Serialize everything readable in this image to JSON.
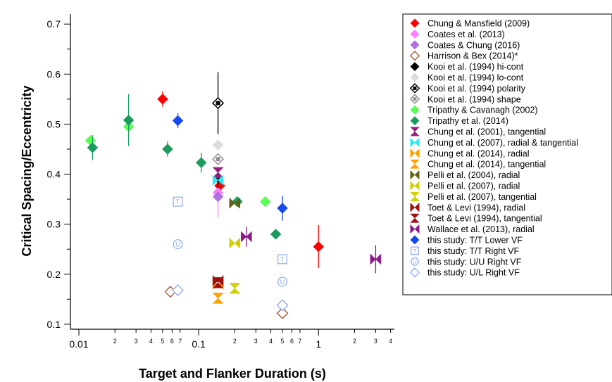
{
  "chart_data": {
    "type": "scatter",
    "xlabel": "Target and Flanker Duration (s)",
    "ylabel": "Critical Spacing/Eccentricity",
    "xscale": "log",
    "xlim": [
      0.0085,
      4.3
    ],
    "ylim": [
      0.09,
      0.72
    ],
    "grid": false,
    "legend_position": "right",
    "x_ticks": [
      {
        "value": 0.01,
        "label": "0.01",
        "major": true
      },
      {
        "value": 0.02,
        "label": "2",
        "major": false
      },
      {
        "value": 0.03,
        "label": "3",
        "major": false
      },
      {
        "value": 0.04,
        "label": "4",
        "major": false
      },
      {
        "value": 0.05,
        "label": "5",
        "major": false
      },
      {
        "value": 0.06,
        "label": "6",
        "major": false
      },
      {
        "value": 0.07,
        "label": "7",
        "major": false
      },
      {
        "value": 0.1,
        "label": "0.1",
        "major": true
      },
      {
        "value": 0.2,
        "label": "2",
        "major": false
      },
      {
        "value": 0.3,
        "label": "3",
        "major": false
      },
      {
        "value": 0.4,
        "label": "4",
        "major": false
      },
      {
        "value": 0.5,
        "label": "5",
        "major": false
      },
      {
        "value": 0.6,
        "label": "6",
        "major": false
      },
      {
        "value": 0.7,
        "label": "7",
        "major": false
      },
      {
        "value": 1,
        "label": "1",
        "major": true
      },
      {
        "value": 2,
        "label": "2",
        "major": false
      },
      {
        "value": 3,
        "label": "3",
        "major": false
      },
      {
        "value": 4,
        "label": "4",
        "major": false
      }
    ],
    "y_ticks": [
      {
        "value": 0.1,
        "label": "0.1"
      },
      {
        "value": 0.2,
        "label": "0.2"
      },
      {
        "value": 0.3,
        "label": "0.3"
      },
      {
        "value": 0.4,
        "label": "0.4"
      },
      {
        "value": 0.5,
        "label": "0.5"
      },
      {
        "value": 0.6,
        "label": "0.6"
      },
      {
        "value": 0.7,
        "label": "0.7"
      }
    ],
    "series": [
      {
        "name": "Chung & Mansfield (2009)",
        "marker": "diamond-filled",
        "color": "#ff0000",
        "points": [
          {
            "x": 0.05,
            "y": 0.55,
            "yerr": 0.015
          },
          {
            "x": 0.15,
            "y": 0.377,
            "yerr": 0.02
          },
          {
            "x": 1.0,
            "y": 0.255,
            "yerr": 0.043
          }
        ]
      },
      {
        "name": "Coates et al. (2013)",
        "marker": "diamond-filled",
        "color": "#ff80ff",
        "points": [
          {
            "x": 0.145,
            "y": 0.363,
            "yerr": 0.05
          }
        ]
      },
      {
        "name": "Coates & Chung (2016)",
        "marker": "diamond-filled",
        "color": "#b070e0",
        "points": [
          {
            "x": 0.145,
            "y": 0.355,
            "yerr": 0.01
          }
        ]
      },
      {
        "name": "Harrison & Bex (2014)*",
        "marker": "diamond-open",
        "color": "#a0522d",
        "points": [
          {
            "x": 0.058,
            "y": 0.165
          },
          {
            "x": 0.5,
            "y": 0.122
          }
        ]
      },
      {
        "name": "Kooi et al. (1994) hi-cont",
        "marker": "diamond-filled",
        "color": "#000000",
        "points": [
          {
            "x": 0.145,
            "y": 0.393,
            "yerr": 0.02
          }
        ]
      },
      {
        "name": "Kooi et al. (1994) lo-cont",
        "marker": "diamond-filled",
        "color": "#dcdcdc",
        "points": [
          {
            "x": 0.145,
            "y": 0.458,
            "yerr": 0.01
          }
        ]
      },
      {
        "name": "Kooi et al. (1994) polarity",
        "marker": "diamond-open-dot",
        "color": "#000000",
        "points": [
          {
            "x": 0.145,
            "y": 0.542,
            "yerr": 0.062
          }
        ]
      },
      {
        "name": "Kooi et al. (1994) shape",
        "marker": "diamond-open-dot",
        "color": "#909090",
        "points": [
          {
            "x": 0.145,
            "y": 0.43,
            "yerr": 0.01
          }
        ]
      },
      {
        "name": "Tripathy & Cavanagh (2002)",
        "marker": "diamond-filled",
        "color": "#55ff55",
        "points": [
          {
            "x": 0.0125,
            "y": 0.467,
            "yerr": 0.01
          },
          {
            "x": 0.026,
            "y": 0.495,
            "yerr": 0.01
          },
          {
            "x": 0.36,
            "y": 0.345,
            "yerr": 0.01
          }
        ]
      },
      {
        "name": "Tripathy et al. (2014)",
        "marker": "diamond-filled",
        "color": "#1c9c5c",
        "points": [
          {
            "x": 0.013,
            "y": 0.453,
            "yerr": 0.025
          },
          {
            "x": 0.026,
            "y": 0.508,
            "yerr": 0.052
          },
          {
            "x": 0.055,
            "y": 0.45,
            "yerr": 0.015
          },
          {
            "x": 0.105,
            "y": 0.423,
            "yerr": 0.02
          },
          {
            "x": 0.21,
            "y": 0.345,
            "yerr": 0.01
          },
          {
            "x": 0.44,
            "y": 0.28,
            "yerr": 0.01
          }
        ]
      },
      {
        "name": "Chung et al.  (2001), tangential",
        "marker": "bowtie-vertical",
        "color": "#9c1c7c",
        "points": [
          {
            "x": 0.145,
            "y": 0.403
          }
        ]
      },
      {
        "name": "Chung et al. (2007), radial & tangential",
        "marker": "bowtie-horizontal",
        "color": "#30e8f0",
        "points": [
          {
            "x": 0.145,
            "y": 0.388
          }
        ]
      },
      {
        "name": "Chung et al. (2014), radial",
        "marker": "bowtie-horizontal",
        "color": "#ffa000",
        "points": [
          {
            "x": 0.145,
            "y": 0.18
          }
        ]
      },
      {
        "name": "Chung et al. (2014), tangential",
        "marker": "bowtie-vertical",
        "color": "#ffa000",
        "points": [
          {
            "x": 0.145,
            "y": 0.152
          }
        ]
      },
      {
        "name": "Pelli et al. (2004), radial",
        "marker": "bowtie-horizontal",
        "color": "#606010",
        "points": [
          {
            "x": 0.2,
            "y": 0.342
          }
        ]
      },
      {
        "name": "Pelli et al. (2007), radial",
        "marker": "bowtie-horizontal",
        "color": "#d0d000",
        "points": [
          {
            "x": 0.2,
            "y": 0.262
          }
        ]
      },
      {
        "name": "Pelli et al. (2007), tangential",
        "marker": "bowtie-vertical",
        "color": "#d0d000",
        "points": [
          {
            "x": 0.2,
            "y": 0.172
          }
        ]
      },
      {
        "name": "Toet & Levi (1994), radial",
        "marker": "bowtie-horizontal",
        "color": "#a01010",
        "points": [
          {
            "x": 0.145,
            "y": 0.187
          }
        ]
      },
      {
        "name": "Toet & Levi (1994), tangential",
        "marker": "bowtie-vertical",
        "color": "#a01010",
        "points": [
          {
            "x": 0.145,
            "y": 0.183
          }
        ]
      },
      {
        "name": "Wallace et al. (2013), radial",
        "marker": "bowtie-horizontal",
        "color": "#8a1a8a",
        "points": [
          {
            "x": 0.25,
            "y": 0.275,
            "yerr": 0.02
          },
          {
            "x": 3.0,
            "y": 0.23,
            "yerr": 0.028
          }
        ]
      },
      {
        "name": "this study: T/T Lower VF",
        "marker": "diamond-filled",
        "color": "#1448f0",
        "points": [
          {
            "x": 0.067,
            "y": 0.507,
            "yerr": 0.015
          },
          {
            "x": 0.5,
            "y": 0.332,
            "yerr": 0.025
          }
        ]
      },
      {
        "name": "this study: T/T Right VF",
        "marker": "text-T",
        "color": "#8aaaee",
        "points": [
          {
            "x": 0.067,
            "y": 0.345
          },
          {
            "x": 0.5,
            "y": 0.23
          }
        ]
      },
      {
        "name": "this study: U/U Right VF",
        "marker": "text-U",
        "color": "#8aaaee",
        "points": [
          {
            "x": 0.067,
            "y": 0.26
          },
          {
            "x": 0.5,
            "y": 0.185
          }
        ]
      },
      {
        "name": "this study: U/L Right VF",
        "marker": "diamond-open",
        "color": "#8aaaee",
        "points": [
          {
            "x": 0.067,
            "y": 0.168
          },
          {
            "x": 0.5,
            "y": 0.138
          }
        ]
      }
    ]
  }
}
